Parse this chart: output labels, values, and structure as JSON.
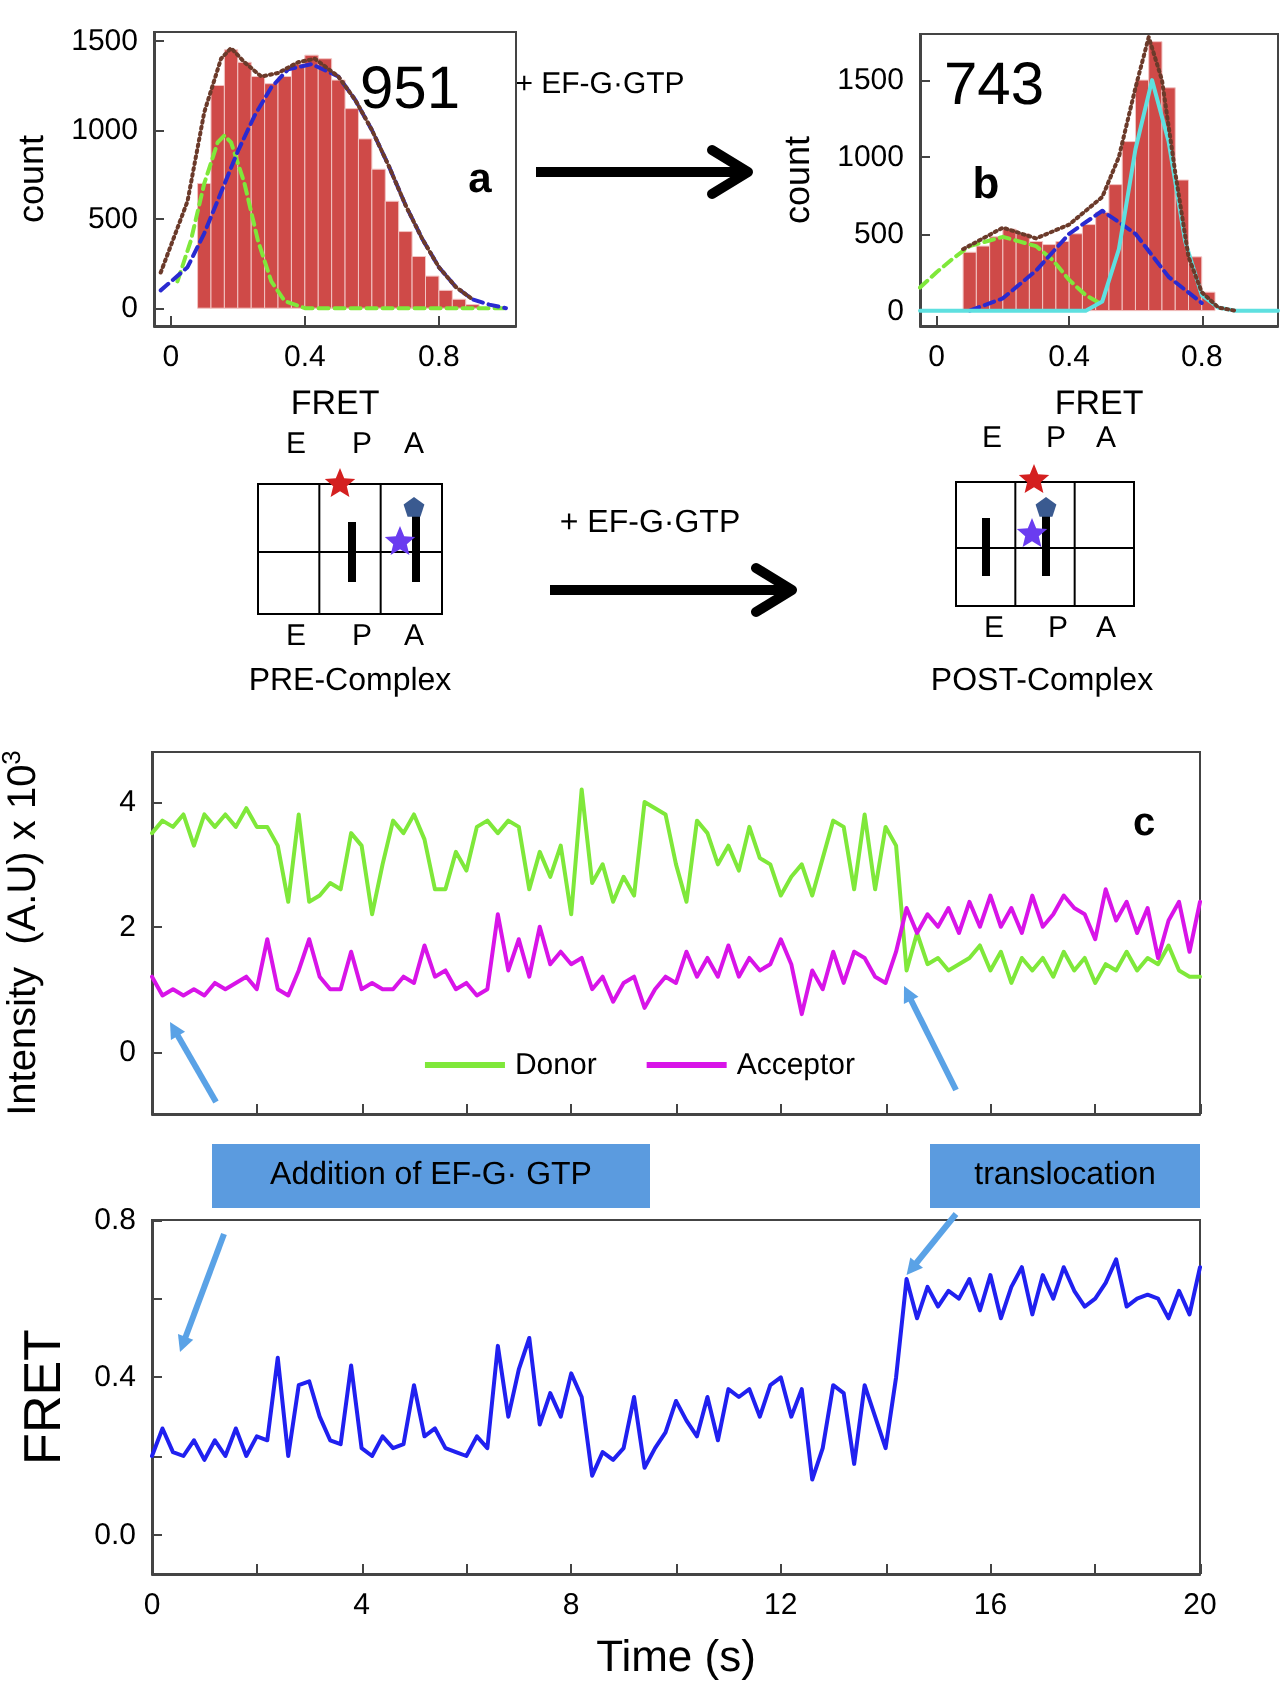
{
  "chart_data": [
    {
      "type": "histogram",
      "xlabel": "FRET",
      "ylabel": "count",
      "annotations": [
        "951",
        "a"
      ],
      "color": "#cf4a48",
      "bins": [
        0.08,
        0.12,
        0.16,
        0.2,
        0.24,
        0.28,
        0.32,
        0.36,
        0.4,
        0.44,
        0.48,
        0.52,
        0.56,
        0.6,
        0.64,
        0.68,
        0.72,
        0.76,
        0.8,
        0.84,
        0.88,
        0.92
      ],
      "values": [
        700,
        1250,
        1450,
        1380,
        1300,
        1260,
        1300,
        1370,
        1420,
        1400,
        1280,
        1120,
        950,
        780,
        600,
        430,
        290,
        180,
        100,
        50,
        20
      ],
      "series": [
        {
          "type": "line",
          "color": "#7fe83a",
          "line_style": "dashed",
          "x": [
            0.02,
            0.06,
            0.1,
            0.14,
            0.16,
            0.18,
            0.22,
            0.26,
            0.3,
            0.34,
            0.4,
            1.0
          ],
          "values": [
            150,
            380,
            700,
            930,
            970,
            930,
            700,
            380,
            150,
            40,
            0,
            0
          ]
        },
        {
          "type": "line",
          "color": "#2a2ad0",
          "line_style": "dashed",
          "x": [
            -0.03,
            0.05,
            0.1,
            0.15,
            0.2,
            0.25,
            0.3,
            0.35,
            0.42,
            0.5,
            0.55,
            0.6,
            0.65,
            0.7,
            0.75,
            0.8,
            0.85,
            0.9,
            0.95,
            1.0
          ],
          "values": [
            100,
            230,
            420,
            650,
            880,
            1080,
            1240,
            1340,
            1370,
            1300,
            1170,
            1000,
            800,
            580,
            390,
            230,
            120,
            50,
            20,
            0
          ]
        },
        {
          "type": "line",
          "color": "#6b3a2a",
          "line_style": "dotted",
          "x": [
            -0.03,
            0.05,
            0.1,
            0.15,
            0.18,
            0.22,
            0.27,
            0.32,
            0.38,
            0.43,
            0.5,
            0.55,
            0.6,
            0.65,
            0.7,
            0.75,
            0.8,
            0.85,
            0.9
          ],
          "values": [
            200,
            600,
            1100,
            1400,
            1460,
            1380,
            1300,
            1320,
            1380,
            1400,
            1300,
            1170,
            1000,
            800,
            580,
            390,
            230,
            120,
            50
          ]
        }
      ],
      "xlim": [
        -0.05,
        1.03
      ],
      "xticks": [
        0,
        0.4,
        0.8
      ],
      "ylim": [
        -100,
        1550
      ],
      "yticks": [
        0,
        500,
        1000,
        1500
      ]
    },
    {
      "type": "histogram",
      "xlabel": "FRET",
      "ylabel": "count",
      "annotations": [
        "743",
        "b"
      ],
      "color": "#cf4a48",
      "bins": [
        0.08,
        0.12,
        0.16,
        0.2,
        0.24,
        0.28,
        0.32,
        0.36,
        0.4,
        0.44,
        0.48,
        0.52,
        0.56,
        0.6,
        0.64,
        0.68,
        0.72,
        0.76,
        0.8,
        0.84,
        0.88,
        0.92
      ],
      "values": [
        380,
        420,
        480,
        530,
        500,
        450,
        430,
        450,
        500,
        560,
        640,
        820,
        1100,
        1500,
        1750,
        1450,
        850,
        350,
        120,
        null,
        null
      ],
      "series": [
        {
          "type": "line",
          "color": "#7fe83a",
          "line_style": "dashed",
          "x": [
            -0.05,
            0.0,
            0.05,
            0.1,
            0.2,
            0.3,
            0.35,
            0.4,
            0.45,
            0.5
          ],
          "values": [
            150,
            250,
            340,
            420,
            480,
            420,
            330,
            200,
            100,
            40
          ]
        },
        {
          "type": "line",
          "color": "#2a2ad0",
          "line_style": "dashed",
          "x": [
            0.1,
            0.2,
            0.3,
            0.4,
            0.5,
            0.6,
            0.7,
            0.8
          ],
          "values": [
            0,
            80,
            260,
            500,
            650,
            500,
            220,
            50
          ]
        },
        {
          "type": "line",
          "color": "#5ee0e0",
          "line_style": "solid",
          "x": [
            -0.05,
            0.45,
            0.5,
            0.55,
            0.6,
            0.65,
            0.7,
            0.75,
            0.8,
            0.85,
            0.9,
            1.03
          ],
          "values": [
            0,
            0,
            60,
            400,
            1050,
            1500,
            1100,
            450,
            100,
            20,
            0,
            0
          ]
        },
        {
          "type": "line",
          "color": "#6b3a2a",
          "line_style": "dotted",
          "x": [
            0.08,
            0.2,
            0.3,
            0.4,
            0.5,
            0.55,
            0.6,
            0.64,
            0.68,
            0.72,
            0.76,
            0.8,
            0.85,
            0.9
          ],
          "values": [
            400,
            540,
            470,
            560,
            740,
            1000,
            1450,
            1780,
            1500,
            900,
            350,
            120,
            20,
            0
          ]
        }
      ],
      "xlim": [
        -0.05,
        1.03
      ],
      "xticks": [
        0,
        0.4,
        0.8
      ],
      "ylim": [
        -100,
        1800
      ],
      "yticks": [
        0,
        500,
        1000,
        1500
      ]
    },
    {
      "type": "other",
      "annotations": [
        "+ EF-G·GTP",
        "E",
        "P",
        "A",
        "E",
        "P",
        "A",
        "PRE-Complex",
        "+ EF-G·GTP",
        "E",
        "P",
        "A",
        "E",
        "P",
        "A",
        "POST-Complex"
      ]
    },
    {
      "type": "line",
      "ylabel": "Intensity  (A.U) x 10$^{3}$",
      "annotations": [
        "c"
      ],
      "legend": "bottom",
      "tick_labels": "y",
      "x": [
        0,
        0.2,
        0.4,
        0.6,
        0.8,
        1,
        1.2,
        1.4,
        1.6,
        1.8,
        2,
        2.2,
        2.4,
        2.6,
        2.8,
        3,
        3.2,
        3.4,
        3.6,
        3.8,
        4,
        4.2,
        4.4,
        4.6,
        4.8,
        5,
        5.2,
        5.4,
        5.6,
        5.8,
        6,
        6.2,
        6.4,
        6.6,
        6.8,
        7,
        7.2,
        7.4,
        7.6,
        7.8,
        8,
        8.2,
        8.4,
        8.6,
        8.8,
        9,
        9.2,
        9.4,
        9.6,
        9.8,
        10,
        10.2,
        10.4,
        10.6,
        10.8,
        11,
        11.2,
        11.4,
        11.6,
        11.8,
        12,
        12.2,
        12.4,
        12.6,
        12.8,
        13,
        13.2,
        13.4,
        13.6,
        13.8,
        14,
        14.2,
        14.4,
        14.6,
        14.8,
        15,
        15.2,
        15.4,
        15.6,
        15.8,
        16,
        16.2,
        16.4,
        16.6,
        16.8,
        17,
        17.2,
        17.4,
        17.6,
        17.8,
        18,
        18.2,
        18.4,
        18.6,
        18.8,
        19,
        19.2,
        19.4,
        19.6,
        19.8,
        20
      ],
      "series": [
        {
          "name": "Donor",
          "color": "#7fe83a",
          "values": [
            3.5,
            3.7,
            3.6,
            3.8,
            3.3,
            3.8,
            3.6,
            3.8,
            3.6,
            3.9,
            3.6,
            3.6,
            3.3,
            2.4,
            3.8,
            2.4,
            2.5,
            2.7,
            2.6,
            3.5,
            3.3,
            2.2,
            3.0,
            3.7,
            3.5,
            3.8,
            3.4,
            2.6,
            2.6,
            3.2,
            2.9,
            3.6,
            3.7,
            3.5,
            3.7,
            3.6,
            2.6,
            3.2,
            2.8,
            3.3,
            2.2,
            4.2,
            2.7,
            3.0,
            2.4,
            2.8,
            2.5,
            4.0,
            3.9,
            3.8,
            3.0,
            2.4,
            3.7,
            3.5,
            3.0,
            3.3,
            2.9,
            3.6,
            3.1,
            3.0,
            2.5,
            2.8,
            3.0,
            2.5,
            3.1,
            3.7,
            3.6,
            2.6,
            3.8,
            2.6,
            3.6,
            3.3,
            1.3,
            1.9,
            1.4,
            1.5,
            1.3,
            1.4,
            1.5,
            1.7,
            1.3,
            1.6,
            1.1,
            1.5,
            1.3,
            1.5,
            1.2,
            1.6,
            1.3,
            1.5,
            1.1,
            1.4,
            1.3,
            1.6,
            1.3,
            1.5,
            1.4,
            1.7,
            1.3,
            1.2,
            1.2
          ]
        },
        {
          "name": "Acceptor",
          "color": "#d814e8",
          "values": [
            1.2,
            0.9,
            1.0,
            0.9,
            1.0,
            0.9,
            1.1,
            1.0,
            1.1,
            1.2,
            1.0,
            1.8,
            1.0,
            0.9,
            1.3,
            1.8,
            1.2,
            1.0,
            1.0,
            1.6,
            1.0,
            1.1,
            1.0,
            1.0,
            1.2,
            1.1,
            1.7,
            1.2,
            1.3,
            1.0,
            1.1,
            0.9,
            1.0,
            2.2,
            1.3,
            1.8,
            1.2,
            2.0,
            1.4,
            1.6,
            1.4,
            1.5,
            1.0,
            1.2,
            0.8,
            1.1,
            1.2,
            0.7,
            1.0,
            1.2,
            1.1,
            1.6,
            1.2,
            1.5,
            1.2,
            1.7,
            1.2,
            1.5,
            1.3,
            1.4,
            1.8,
            1.4,
            0.6,
            1.3,
            1.0,
            1.6,
            1.1,
            1.6,
            1.5,
            1.2,
            1.1,
            1.6,
            2.3,
            1.9,
            2.2,
            2.0,
            2.3,
            1.9,
            2.4,
            2.0,
            2.5,
            2.0,
            2.3,
            1.9,
            2.5,
            2.0,
            2.2,
            2.5,
            2.3,
            2.2,
            1.8,
            2.6,
            2.1,
            2.4,
            1.9,
            2.3,
            1.5,
            2.1,
            2.4,
            1.6,
            2.4
          ]
        }
      ],
      "xlim": [
        0,
        20
      ],
      "xticks": [
        0,
        {
          "value": 2,
          "label": null
        },
        4,
        {
          "value": 6,
          "label": null
        },
        8,
        {
          "value": 10,
          "label": null
        },
        12,
        {
          "value": 14,
          "label": null
        },
        16,
        {
          "value": 18,
          "label": null
        },
        20
      ],
      "ylim": [
        -1,
        4.8
      ],
      "yticks": [
        0,
        2,
        4
      ]
    },
    {
      "type": "line",
      "xlabel": "Time (s)",
      "ylabel": "FRET",
      "annotations": [
        "Addition of EF-G· GTP",
        {
          "text": "translocation",
          "x": 14.4,
          "y": 0.66
        }
      ],
      "x": [
        0,
        0.2,
        0.4,
        0.6,
        0.8,
        1,
        1.2,
        1.4,
        1.6,
        1.8,
        2,
        2.2,
        2.4,
        2.6,
        2.8,
        3,
        3.2,
        3.4,
        3.6,
        3.8,
        4,
        4.2,
        4.4,
        4.6,
        4.8,
        5,
        5.2,
        5.4,
        5.6,
        5.8,
        6,
        6.2,
        6.4,
        6.6,
        6.8,
        7,
        7.2,
        7.4,
        7.6,
        7.8,
        8,
        8.2,
        8.4,
        8.6,
        8.8,
        9,
        9.2,
        9.4,
        9.6,
        9.8,
        10,
        10.2,
        10.4,
        10.6,
        10.8,
        11,
        11.2,
        11.4,
        11.6,
        11.8,
        12,
        12.2,
        12.4,
        12.6,
        12.8,
        13,
        13.2,
        13.4,
        13.6,
        13.8,
        14,
        14.2,
        14.4,
        14.6,
        14.8,
        15,
        15.2,
        15.4,
        15.6,
        15.8,
        16,
        16.2,
        16.4,
        16.6,
        16.8,
        17,
        17.2,
        17.4,
        17.6,
        17.8,
        18,
        18.2,
        18.4,
        18.6,
        18.8,
        19,
        19.2,
        19.4,
        19.6,
        19.8,
        20
      ],
      "series": [
        {
          "color": "#2020f0",
          "values": [
            0.2,
            0.27,
            0.21,
            0.2,
            0.24,
            0.19,
            0.24,
            0.2,
            0.27,
            0.2,
            0.25,
            0.24,
            0.45,
            0.2,
            0.38,
            0.39,
            0.3,
            0.24,
            0.23,
            0.43,
            0.22,
            0.2,
            0.25,
            0.22,
            0.23,
            0.38,
            0.25,
            0.27,
            0.22,
            0.21,
            0.2,
            0.25,
            0.22,
            0.48,
            0.3,
            0.42,
            0.5,
            0.28,
            0.36,
            0.3,
            0.41,
            0.35,
            0.15,
            0.21,
            0.19,
            0.22,
            0.35,
            0.17,
            0.22,
            0.26,
            0.34,
            0.29,
            0.25,
            0.35,
            0.24,
            0.37,
            0.35,
            0.37,
            0.3,
            0.38,
            0.4,
            0.3,
            0.37,
            0.14,
            0.22,
            0.38,
            0.36,
            0.18,
            0.38,
            0.3,
            0.22,
            0.4,
            0.65,
            0.55,
            0.63,
            0.58,
            0.62,
            0.6,
            0.65,
            0.57,
            0.66,
            0.55,
            0.63,
            0.68,
            0.56,
            0.66,
            0.6,
            0.68,
            0.62,
            0.58,
            0.6,
            0.64,
            0.7,
            0.58,
            0.6,
            0.61,
            0.6,
            0.55,
            0.62,
            0.56,
            0.68
          ]
        }
      ],
      "xlim": [
        0,
        20
      ],
      "xticks": [
        0,
        {
          "value": 2,
          "label": null
        },
        4,
        {
          "value": 6,
          "label": null
        },
        8,
        {
          "value": 10,
          "label": null
        },
        12,
        {
          "value": 14,
          "label": null
        },
        16,
        {
          "value": 18,
          "label": null
        },
        20
      ],
      "ylim": [
        -0.1,
        0.8
      ],
      "yticks": [
        {
          "value": 0,
          "label": "0.0"
        },
        {
          "value": 0.2,
          "label": null
        },
        0.4,
        {
          "value": 0.6,
          "label": null
        },
        0.8
      ]
    }
  ]
}
